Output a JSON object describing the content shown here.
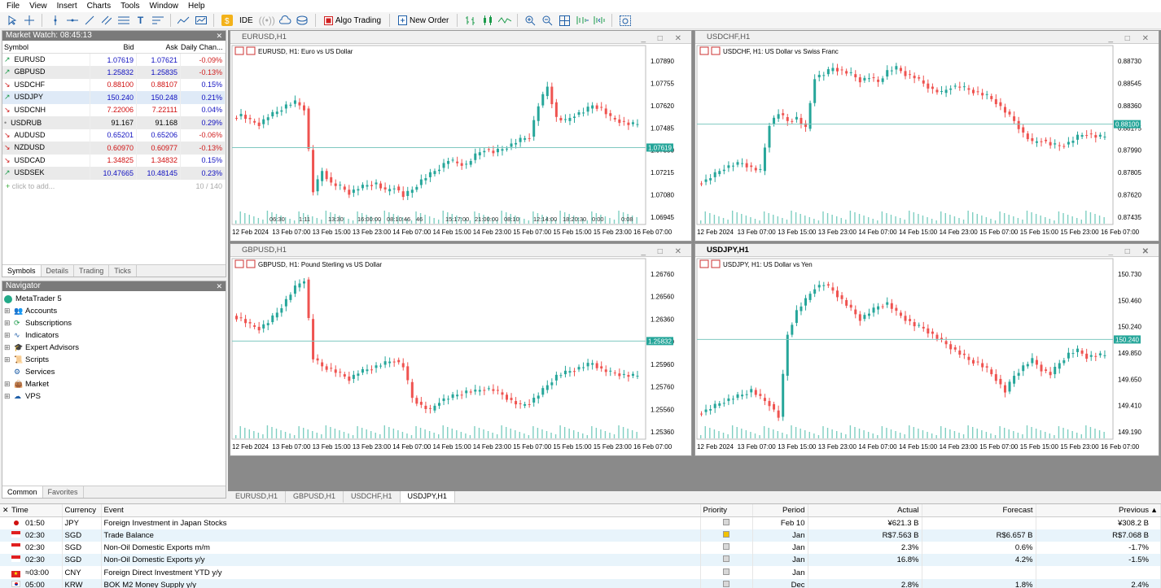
{
  "menu": [
    "File",
    "View",
    "Insert",
    "Charts",
    "Tools",
    "Window",
    "Help"
  ],
  "toolbar": {
    "ide": "IDE",
    "algo_trading": "Algo Trading",
    "new_order": "New Order"
  },
  "market_watch": {
    "title": "Market Watch: 08:45:13",
    "headers": {
      "symbol": "Symbol",
      "bid": "Bid",
      "ask": "Ask",
      "change": "Daily Chan..."
    },
    "rows": [
      {
        "symbol": "EURUSD",
        "bid": "1.07619",
        "ask": "1.07621",
        "change": "-0.09%",
        "dir": "up",
        "color": "#1010c0"
      },
      {
        "symbol": "GBPUSD",
        "bid": "1.25832",
        "ask": "1.25835",
        "change": "-0.13%",
        "dir": "up",
        "color": "#1010c0"
      },
      {
        "symbol": "USDCHF",
        "bid": "0.88100",
        "ask": "0.88107",
        "change": "0.15%",
        "dir": "down",
        "color": "#d01010"
      },
      {
        "symbol": "USDJPY",
        "bid": "150.240",
        "ask": "150.248",
        "change": "0.21%",
        "dir": "up",
        "color": "#1010c0"
      },
      {
        "symbol": "USDCNH",
        "bid": "7.22006",
        "ask": "7.22111",
        "change": "0.04%",
        "dir": "down",
        "color": "#d01010"
      },
      {
        "symbol": "USDRUB",
        "bid": "91.167",
        "ask": "91.168",
        "change": "0.29%",
        "dir": "flat",
        "color": "#000000"
      },
      {
        "symbol": "AUDUSD",
        "bid": "0.65201",
        "ask": "0.65206",
        "change": "-0.06%",
        "dir": "down",
        "color": "#1010c0"
      },
      {
        "symbol": "NZDUSD",
        "bid": "0.60970",
        "ask": "0.60977",
        "change": "-0.13%",
        "dir": "down",
        "color": "#d01010"
      },
      {
        "symbol": "USDCAD",
        "bid": "1.34825",
        "ask": "1.34832",
        "change": "0.15%",
        "dir": "down",
        "color": "#d01010"
      },
      {
        "symbol": "USDSEK",
        "bid": "10.47665",
        "ask": "10.48145",
        "change": "0.23%",
        "dir": "up",
        "color": "#1010c0"
      }
    ],
    "add": "click to add...",
    "count": "10 / 140",
    "tabs": [
      "Symbols",
      "Details",
      "Trading",
      "Ticks"
    ]
  },
  "navigator": {
    "title": "Navigator",
    "root": "MetaTrader 5",
    "items": [
      "Accounts",
      "Subscriptions",
      "Indicators",
      "Expert Advisors",
      "Scripts",
      "Services",
      "Market",
      "VPS"
    ],
    "tabs": [
      "Common",
      "Favorites"
    ]
  },
  "charts": [
    {
      "id": "EURUSD,H1",
      "label": "EURUSD, H1:  Euro vs US Dollar",
      "ticks": [
        "1.07890",
        "1.07755",
        "1.07620",
        "1.07485",
        "1.07350",
        "1.07215",
        "1.07080",
        "1.06945"
      ],
      "price": "1.07619",
      "xlabels": [
        "12 Feb 2024",
        "13 Feb 07:00",
        "13 Feb 15:00",
        "13 Feb 23:00",
        "14 Feb 07:00",
        "14 Feb 15:00",
        "14 Feb 23:00",
        "15 Feb 07:00",
        "15 Feb 15:00",
        "15 Feb 23:00",
        "16 Feb 07:00"
      ],
      "scroll": [
        "06:30",
        "1:11",
        "13:30",
        "16:00:00",
        "08:10:46",
        "46",
        "15:17:00",
        "21:00:00",
        "08:10",
        "12:14:00",
        "18:20:30",
        "0:00",
        "0:08"
      ]
    },
    {
      "id": "USDCHF,H1",
      "label": "USDCHF, H1:  US Dollar vs Swiss Franc",
      "ticks": [
        "0.88730",
        "0.88545",
        "0.88360",
        "0.88175",
        "0.87990",
        "0.87805",
        "0.87620",
        "0.87435"
      ],
      "price": "0.88100",
      "xlabels": [
        "12 Feb 2024",
        "13 Feb 07:00",
        "13 Feb 15:00",
        "13 Feb 23:00",
        "14 Feb 07:00",
        "14 Feb 15:00",
        "14 Feb 23:00",
        "15 Feb 07:00",
        "15 Feb 15:00",
        "15 Feb 23:00",
        "16 Feb 07:00"
      ]
    },
    {
      "id": "GBPUSD,H1",
      "label": "GBPUSD, H1:  Pound Sterling vs US Dollar",
      "ticks": [
        "1.26760",
        "1.26560",
        "1.26360",
        "1.26160",
        "1.25960",
        "1.25760",
        "1.25560",
        "1.25360"
      ],
      "price": "1.25832",
      "xlabels": [
        "12 Feb 2024",
        "13 Feb 07:00",
        "13 Feb 15:00",
        "13 Feb 23:00",
        "14 Feb 07:00",
        "14 Feb 15:00",
        "14 Feb 23:00",
        "15 Feb 07:00",
        "15 Feb 15:00",
        "15 Feb 23:00",
        "16 Feb 07:00"
      ]
    },
    {
      "id": "USDJPY,H1",
      "label": "USDJPY, H1:  US Dollar vs Yen",
      "ticks": [
        "150.730",
        "150.460",
        "150.240",
        "149.850",
        "149.650",
        "149.410",
        "149.190"
      ],
      "price": "150.240",
      "xlabels": [
        "12 Feb 2024",
        "13 Feb 07:00",
        "13 Feb 15:00",
        "13 Feb 23:00",
        "14 Feb 07:00",
        "14 Feb 15:00",
        "14 Feb 23:00",
        "15 Feb 07:00",
        "15 Feb 15:00",
        "15 Feb 23:00",
        "16 Feb 07:00"
      ]
    }
  ],
  "chart_tabs": [
    "EURUSD,H1",
    "GBPUSD,H1",
    "USDCHF,H1",
    "USDJPY,H1"
  ],
  "calendar": {
    "headers": {
      "time": "Time",
      "currency": "Currency",
      "event": "Event",
      "priority": "Priority",
      "period": "Period",
      "actual": "Actual",
      "forecast": "Forecast",
      "previous": "Previous"
    },
    "rows": [
      {
        "time": "01:50",
        "currency": "JPY",
        "event": "Foreign Investment in Japan Stocks",
        "priority": "low",
        "period": "Feb 10",
        "actual": "¥621.3 B",
        "forecast": "",
        "previous": "¥308.2 B",
        "flag": "jp"
      },
      {
        "time": "02:30",
        "currency": "SGD",
        "event": "Trade Balance",
        "priority": "high",
        "period": "Jan",
        "actual": "R$7.563 B",
        "forecast": "R$6.657 B",
        "previous": "R$7.068 B",
        "flag": "sg"
      },
      {
        "time": "02:30",
        "currency": "SGD",
        "event": "Non-Oil Domestic Exports m/m",
        "priority": "low",
        "period": "Jan",
        "actual": "2.3%",
        "forecast": "0.6%",
        "previous": "-1.7%",
        "flag": "sg"
      },
      {
        "time": "02:30",
        "currency": "SGD",
        "event": "Non-Oil Domestic Exports y/y",
        "priority": "low",
        "period": "Jan",
        "actual": "16.8%",
        "forecast": "4.2%",
        "previous": "-1.5%",
        "flag": "sg"
      },
      {
        "time": "≈03:00",
        "currency": "CNY",
        "event": "Foreign Direct Investment YTD y/y",
        "priority": "low",
        "period": "Jan",
        "actual": "",
        "forecast": "",
        "previous": "",
        "flag": "cn"
      },
      {
        "time": "05:00",
        "currency": "KRW",
        "event": "BOK M2 Money Supply y/y",
        "priority": "low",
        "period": "Dec",
        "actual": "2.8%",
        "forecast": "1.8%",
        "previous": "2.4%",
        "flag": "kr"
      }
    ]
  }
}
